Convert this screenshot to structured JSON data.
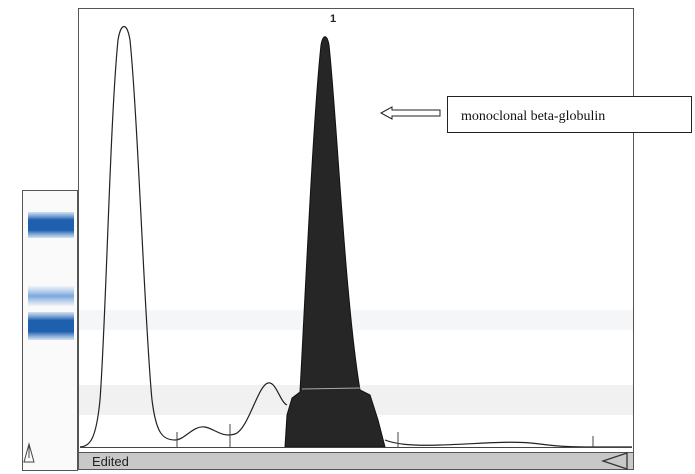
{
  "peak_label": "1",
  "annotation": "monoclonal beta-globulin",
  "status": "Edited"
}
